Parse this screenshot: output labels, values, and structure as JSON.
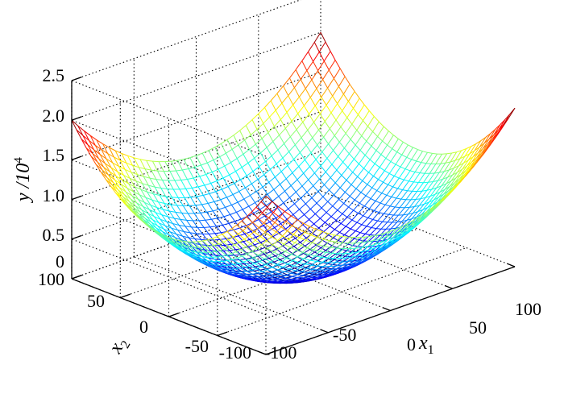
{
  "chart_data": {
    "type": "surface-mesh",
    "function": "y = x1^2 + x2^2",
    "x1": {
      "range": [
        -100,
        100
      ],
      "ticks": [
        "-100",
        "-50",
        "0",
        "50",
        "100"
      ],
      "label": "x",
      "label_sub": "1"
    },
    "x2": {
      "range": [
        -100,
        100
      ],
      "ticks": [
        "-100",
        "-50",
        "0",
        "50",
        "100"
      ],
      "label": "x",
      "label_sub": "2"
    },
    "y": {
      "range": [
        0,
        2.5
      ],
      "ticks": [
        "0",
        "0.5",
        "1.0",
        "1.5",
        "2.0",
        "2.5"
      ],
      "label": "y /10",
      "label_sup": "4"
    },
    "mesh_steps": 40,
    "colormap": "jet",
    "grid": true
  }
}
